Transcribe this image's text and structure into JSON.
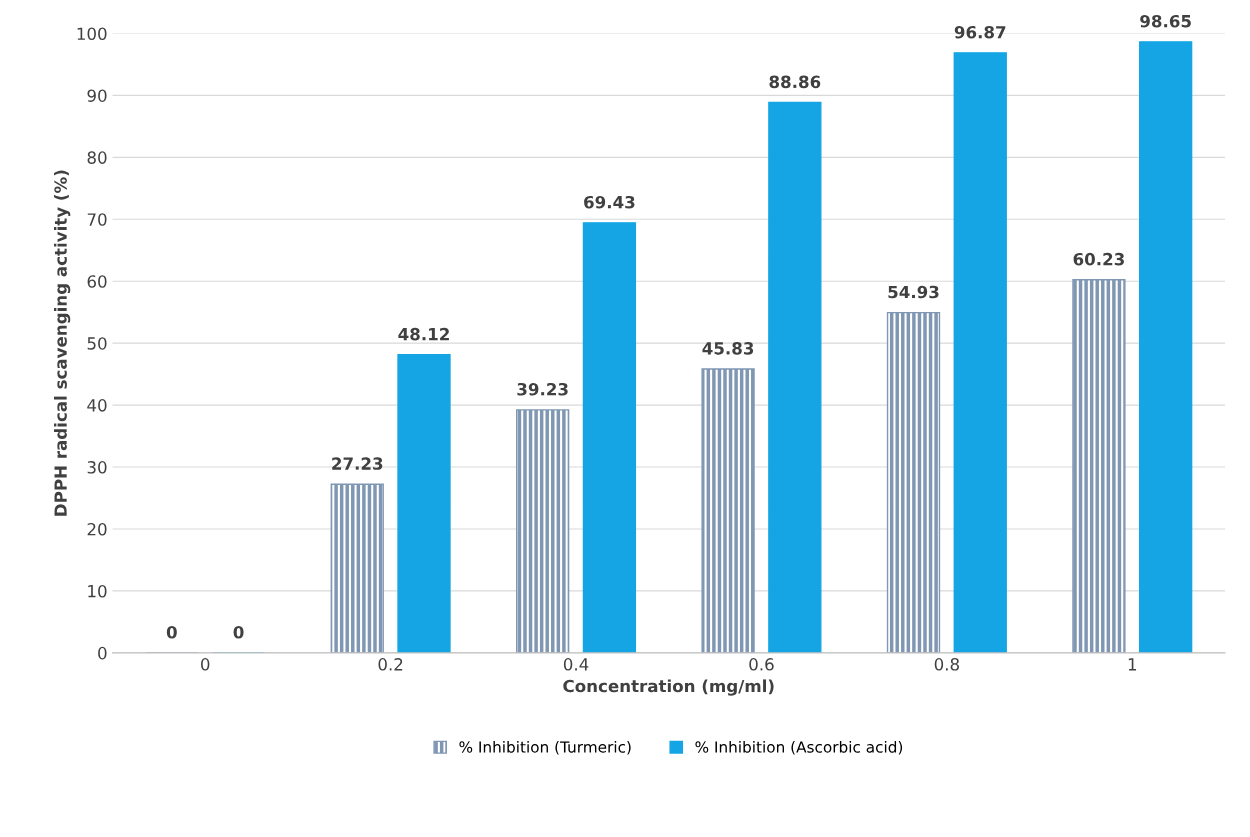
{
  "chart_data": {
    "type": "bar",
    "xlabel": "Concentration (mg/ml)",
    "ylabel": "DPPH radical scavenging activity (%)",
    "categories": [
      "0",
      "0.2",
      "0.4",
      "0.6",
      "0.8",
      "1"
    ],
    "series": [
      {
        "name": "% Inhibition (Turmeric)",
        "color": "#7f97b2",
        "values": [
          0,
          27.23,
          39.23,
          45.83,
          54.93,
          60.23
        ]
      },
      {
        "name": "% Inhibition (Ascorbic acid)",
        "color": "#15a5e4",
        "values": [
          0,
          48.12,
          69.43,
          88.86,
          96.87,
          98.65
        ]
      }
    ],
    "ylim": [
      0,
      100
    ],
    "yticks": [
      0,
      10,
      20,
      30,
      40,
      50,
      60,
      70,
      80,
      90,
      100
    ],
    "grid": "y",
    "legend": "bottom",
    "data_labels": true
  }
}
